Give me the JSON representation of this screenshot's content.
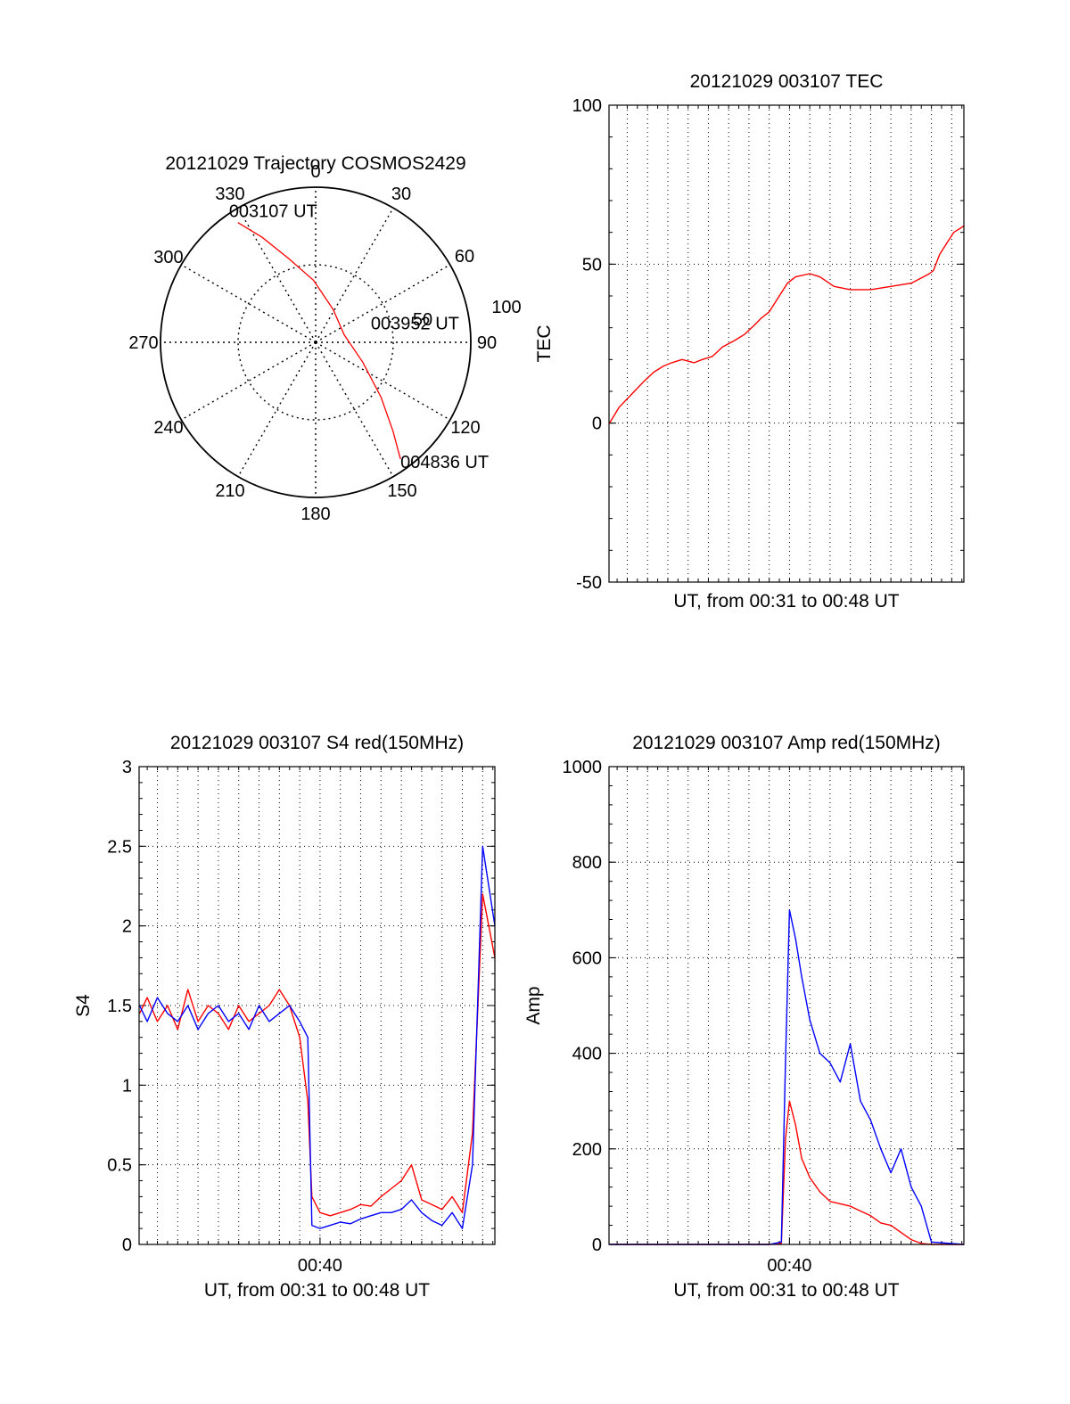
{
  "chart_data": [
    {
      "type": "polar",
      "title": "20121029 Trajectory COSMOS2429",
      "angle_labels": [
        "0",
        "30",
        "60",
        "90",
        "120",
        "150",
        "180",
        "210",
        "240",
        "270",
        "300",
        "330"
      ],
      "radial_labels": [
        "50",
        "100"
      ],
      "radial_max": 100,
      "series": [
        {
          "color": "#ff0000",
          "points": [
            {
              "azimuth": 327,
              "zenith": 92
            },
            {
              "azimuth": 333,
              "zenith": 76
            },
            {
              "azimuth": 342,
              "zenith": 57
            },
            {
              "azimuth": 358,
              "zenith": 40
            },
            {
              "azimuth": 28,
              "zenith": 24
            },
            {
              "azimuth": 75,
              "zenith": 19
            },
            {
              "azimuth": 113,
              "zenith": 33
            },
            {
              "azimuth": 130,
              "zenith": 55
            },
            {
              "azimuth": 139,
              "zenith": 76
            },
            {
              "azimuth": 144,
              "zenith": 93
            }
          ]
        }
      ],
      "annotations": [
        {
          "text": "003107 UT",
          "azimuth": 327,
          "zenith": 92
        },
        {
          "text": "003952 UT",
          "azimuth": 75,
          "zenith": 19
        },
        {
          "text": "004836 UT",
          "azimuth": 144,
          "zenith": 93
        }
      ]
    },
    {
      "type": "line",
      "title": "20121029 003107 TEC",
      "xlabel": "UT, from 00:31 to 00:48 UT",
      "ylabel": "TEC",
      "xlim": [
        31.1,
        48.6
      ],
      "ylim": [
        -50,
        100
      ],
      "yticks": [
        "-50",
        "0",
        "50",
        "100"
      ],
      "xticks": [],
      "grid": true,
      "series": [
        {
          "color": "#ff0000",
          "x": [
            31.12,
            31.6,
            32.2,
            32.8,
            33.3,
            33.8,
            34.2,
            34.7,
            35.3,
            35.7,
            36.2,
            36.7,
            37.3,
            37.8,
            38.3,
            38.6,
            39.0,
            39.3,
            39.6,
            39.9,
            40.3,
            41.0,
            41.5,
            42.2,
            43.0,
            44.0,
            45.0,
            46.0,
            46.6,
            46.9,
            47.1,
            47.4,
            47.7,
            48.1,
            48.6
          ],
          "y": [
            0,
            5,
            9,
            13,
            16,
            18,
            19,
            20,
            19,
            20,
            21,
            24,
            26,
            28,
            31,
            33,
            35,
            38,
            41,
            44,
            46,
            47,
            46,
            43,
            42,
            42,
            43,
            44,
            46,
            47,
            48,
            53,
            56,
            60,
            62
          ]
        }
      ]
    },
    {
      "type": "line",
      "title": "20121029 003107 S4 red(150MHz)",
      "xlabel": "UT, from 00:31 to 00:48 UT",
      "ylabel": "S4",
      "xlim": [
        31.1,
        48.6
      ],
      "ylim": [
        0,
        3
      ],
      "yticks": [
        "0",
        "0.5",
        "1",
        "1.5",
        "2",
        "2.5",
        "3"
      ],
      "xticks": [
        {
          "value": 40,
          "label": "00:40"
        }
      ],
      "grid": true,
      "series": [
        {
          "color": "#ff0000",
          "x": [
            31.12,
            31.5,
            32.0,
            32.5,
            33.0,
            33.5,
            34.0,
            34.5,
            35.0,
            35.5,
            36.0,
            36.5,
            37.0,
            37.5,
            38.0,
            38.5,
            39.0,
            39.4,
            39.6,
            40.0,
            40.5,
            41.0,
            41.5,
            42.0,
            42.5,
            43.0,
            43.5,
            44.0,
            44.5,
            45.0,
            45.5,
            46.0,
            46.5,
            47.0,
            47.5,
            48.0,
            48.6
          ],
          "y": [
            1.45,
            1.55,
            1.4,
            1.5,
            1.35,
            1.6,
            1.4,
            1.5,
            1.45,
            1.35,
            1.5,
            1.4,
            1.45,
            1.5,
            1.6,
            1.5,
            1.3,
            0.9,
            0.3,
            0.2,
            0.18,
            0.2,
            0.22,
            0.25,
            0.24,
            0.3,
            0.35,
            0.4,
            0.5,
            0.28,
            0.25,
            0.22,
            0.3,
            0.2,
            0.7,
            2.2,
            1.8
          ]
        },
        {
          "color": "#0000ff",
          "x": [
            31.12,
            31.5,
            32.0,
            32.5,
            33.0,
            33.5,
            34.0,
            34.5,
            35.0,
            35.5,
            36.0,
            36.5,
            37.0,
            37.5,
            38.0,
            38.5,
            39.0,
            39.4,
            39.6,
            40.0,
            40.5,
            41.0,
            41.5,
            42.0,
            42.5,
            43.0,
            43.5,
            44.0,
            44.5,
            45.0,
            45.5,
            46.0,
            46.5,
            47.0,
            47.5,
            48.0,
            48.6
          ],
          "y": [
            1.5,
            1.4,
            1.55,
            1.45,
            1.4,
            1.5,
            1.35,
            1.45,
            1.5,
            1.4,
            1.45,
            1.35,
            1.5,
            1.4,
            1.45,
            1.5,
            1.4,
            1.3,
            0.12,
            0.1,
            0.12,
            0.14,
            0.13,
            0.16,
            0.18,
            0.2,
            0.2,
            0.22,
            0.28,
            0.2,
            0.15,
            0.12,
            0.2,
            0.1,
            0.5,
            2.5,
            2.0
          ]
        }
      ]
    },
    {
      "type": "line",
      "title": "20121029 003107 Amp red(150MHz)",
      "xlabel": "UT, from 00:31 to 00:48 UT",
      "ylabel": "Amp",
      "xlim": [
        31.1,
        48.6
      ],
      "ylim": [
        0,
        1000
      ],
      "yticks": [
        "0",
        "200",
        "400",
        "600",
        "800",
        "1000"
      ],
      "xticks": [
        {
          "value": 40,
          "label": "00:40"
        }
      ],
      "grid": true,
      "series": [
        {
          "color": "#ff0000",
          "x": [
            31.12,
            35.0,
            39.0,
            39.6,
            39.8,
            40.0,
            40.3,
            40.6,
            41.0,
            41.5,
            42.0,
            42.5,
            43.0,
            43.5,
            44.0,
            44.5,
            45.0,
            45.5,
            46.0,
            46.5,
            47.0,
            48.6
          ],
          "y": [
            0,
            0,
            0,
            2,
            220,
            300,
            250,
            180,
            140,
            110,
            90,
            85,
            80,
            70,
            60,
            45,
            40,
            25,
            10,
            2,
            0,
            0
          ]
        },
        {
          "color": "#0000ff",
          "x": [
            31.12,
            35.0,
            39.0,
            39.6,
            39.8,
            40.0,
            40.3,
            40.6,
            41.0,
            41.5,
            42.0,
            42.5,
            43.0,
            43.5,
            44.0,
            44.5,
            45.0,
            45.5,
            46.0,
            46.5,
            47.0,
            48.6
          ],
          "y": [
            0,
            0,
            0,
            5,
            380,
            700,
            640,
            560,
            470,
            400,
            380,
            340,
            420,
            300,
            260,
            200,
            150,
            200,
            120,
            80,
            5,
            0
          ]
        }
      ]
    }
  ]
}
